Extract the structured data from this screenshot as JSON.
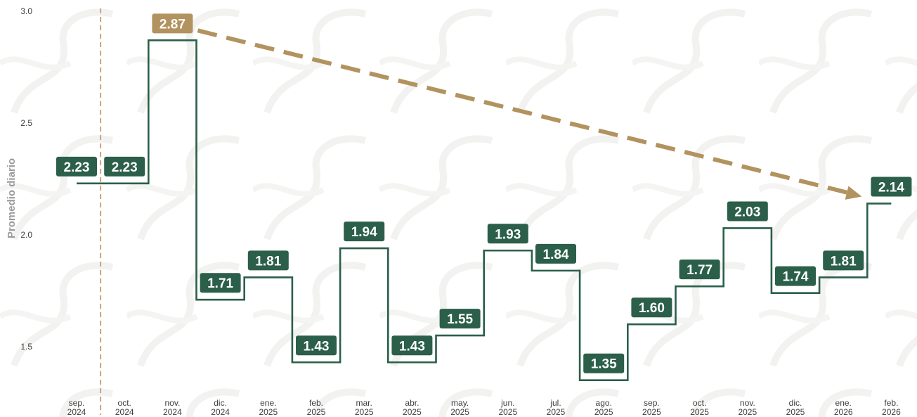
{
  "chart_data": {
    "type": "line",
    "step": true,
    "ylabel": "Promedio diario",
    "xlabel": "",
    "title": "",
    "ylim": [
      1.35,
      3.0
    ],
    "yticks": [
      "1.5",
      "2.0",
      "2.5",
      "3.0"
    ],
    "grid": false,
    "categories": [
      [
        "sep.",
        "2024"
      ],
      [
        "oct.",
        "2024"
      ],
      [
        "nov.",
        "2024"
      ],
      [
        "dic.",
        "2024"
      ],
      [
        "ene.",
        "2025"
      ],
      [
        "feb.",
        "2025"
      ],
      [
        "mar.",
        "2025"
      ],
      [
        "abr.",
        "2025"
      ],
      [
        "may.",
        "2025"
      ],
      [
        "jun.",
        "2025"
      ],
      [
        "jul.",
        "2025"
      ],
      [
        "ago.",
        "2025"
      ],
      [
        "sep.",
        "2025"
      ],
      [
        "oct.",
        "2025"
      ],
      [
        "nov.",
        "2025"
      ],
      [
        "dic.",
        "2025"
      ],
      [
        "ene.",
        "2026"
      ],
      [
        "feb.",
        "2026"
      ]
    ],
    "values": [
      2.23,
      2.23,
      2.87,
      1.71,
      1.81,
      1.43,
      1.94,
      1.43,
      1.55,
      1.93,
      1.84,
      1.35,
      1.6,
      1.77,
      2.03,
      1.74,
      1.81,
      2.14
    ],
    "value_labels": [
      "2.23",
      "2.23",
      "2.87",
      "1.71",
      "1.81",
      "1.43",
      "1.94",
      "1.43",
      "1.55",
      "1.93",
      "1.84",
      "1.35",
      "1.60",
      "1.77",
      "2.03",
      "1.74",
      "1.81",
      "2.14"
    ],
    "highlight_index": 2,
    "trend_arrow": {
      "from_index": 2,
      "to_index": 17
    },
    "vertical_marker_after_index": 0,
    "colors": {
      "series": "#2b5f4a",
      "label_bg": "#2b5f4a",
      "highlight": "#b2935f",
      "arrow": "#b2935f",
      "marker": "#c9a57c",
      "axis_text": "#3d3d3d",
      "ylabel": "#9a9a9a"
    }
  }
}
